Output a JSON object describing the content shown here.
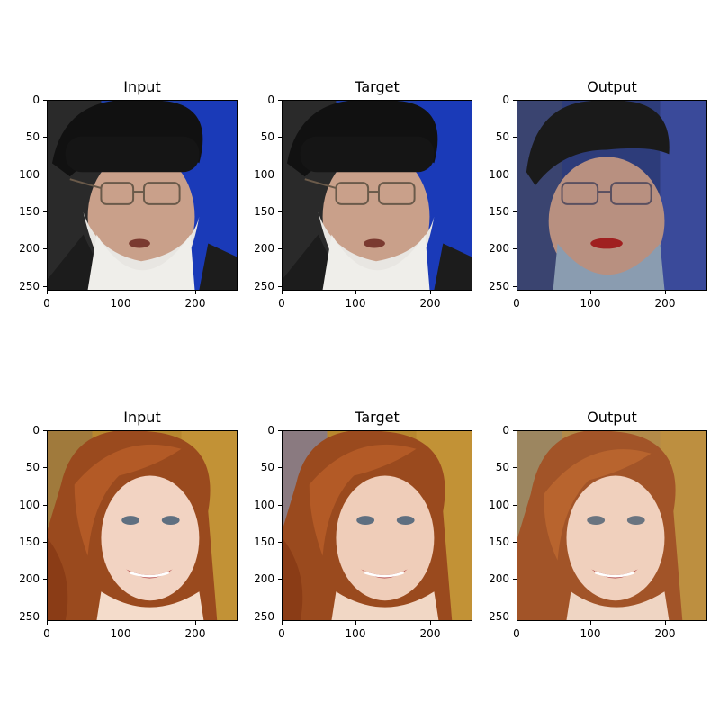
{
  "figure": {
    "rows": [
      {
        "panels": [
          {
            "title": "Input",
            "image": "portrait-elderly-bearded-man-black-turban-glasses-blue-background"
          },
          {
            "title": "Target",
            "image": "portrait-elderly-bearded-man-black-turban-glasses-blue-background"
          },
          {
            "title": "Output",
            "image": "reconstructed-portrait-man-turban-glasses-blurred"
          }
        ]
      },
      {
        "panels": [
          {
            "title": "Input",
            "image": "portrait-red-haired-smiling-woman-gold-background"
          },
          {
            "title": "Target",
            "image": "portrait-red-haired-smiling-woman-gold-background"
          },
          {
            "title": "Output",
            "image": "reconstructed-portrait-red-haired-woman-smooth"
          }
        ]
      }
    ],
    "axes": {
      "y_ticks": [
        "0",
        "50",
        "100",
        "150",
        "200",
        "250"
      ],
      "x_ticks": [
        "0",
        "100",
        "200"
      ]
    }
  }
}
